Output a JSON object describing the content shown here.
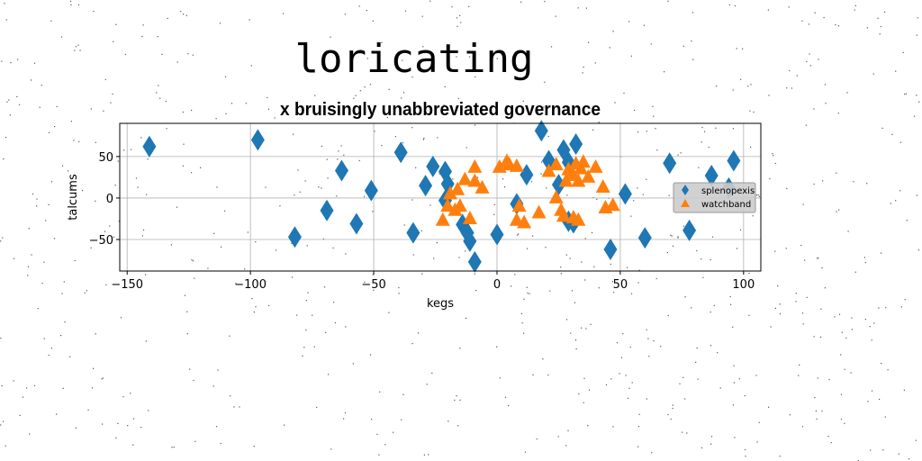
{
  "figure_title": "loricating",
  "chart_data": {
    "type": "scatter",
    "title": "x bruisingly unabbreviated governance",
    "xlabel": "kegs",
    "ylabel": "talcums",
    "xlim": [
      -153,
      107
    ],
    "ylim": [
      -88,
      90
    ],
    "xticks": [
      -150,
      -100,
      -50,
      0,
      50,
      100
    ],
    "yticks": [
      -50,
      0,
      50
    ],
    "grid": true,
    "legend_position": "right",
    "series": [
      {
        "name": "splenopexis",
        "marker": "thin_diamond",
        "color": "#1f77b4",
        "points": [
          [
            -141,
            62
          ],
          [
            -97,
            70
          ],
          [
            -82,
            -47
          ],
          [
            -69,
            -15
          ],
          [
            -63,
            33
          ],
          [
            -57,
            -31
          ],
          [
            -51,
            9
          ],
          [
            -39,
            55
          ],
          [
            -34,
            -42
          ],
          [
            -29,
            15
          ],
          [
            -26,
            38
          ],
          [
            -21,
            32
          ],
          [
            -21,
            -3
          ],
          [
            -20,
            17
          ],
          [
            -14,
            -32
          ],
          [
            -12,
            -42
          ],
          [
            -11,
            -52
          ],
          [
            -9,
            -77
          ],
          [
            0,
            -44
          ],
          [
            8,
            -7
          ],
          [
            12,
            28
          ],
          [
            18,
            81
          ],
          [
            21,
            45
          ],
          [
            25,
            16
          ],
          [
            27,
            58
          ],
          [
            29,
            43
          ],
          [
            29,
            -28
          ],
          [
            31,
            -30
          ],
          [
            32,
            65
          ],
          [
            46,
            -62
          ],
          [
            52,
            5
          ],
          [
            60,
            -48
          ],
          [
            70,
            42
          ],
          [
            78,
            -39
          ],
          [
            87,
            27
          ],
          [
            94,
            12
          ],
          [
            96,
            45
          ]
        ]
      },
      {
        "name": "watchband",
        "marker": "triangle_up",
        "color": "#ff7f0e",
        "points": [
          [
            -22,
            -27
          ],
          [
            -20,
            -10
          ],
          [
            -19,
            5
          ],
          [
            -17,
            -15
          ],
          [
            -16,
            10
          ],
          [
            -15,
            -10
          ],
          [
            -13,
            22
          ],
          [
            -11,
            -25
          ],
          [
            -9,
            20
          ],
          [
            -9,
            37
          ],
          [
            -6,
            12
          ],
          [
            1,
            37
          ],
          [
            4,
            44
          ],
          [
            5,
            40
          ],
          [
            8,
            38
          ],
          [
            8,
            -27
          ],
          [
            9,
            -10
          ],
          [
            11,
            -30
          ],
          [
            17,
            -18
          ],
          [
            21,
            32
          ],
          [
            24,
            40
          ],
          [
            24,
            0
          ],
          [
            26,
            -15
          ],
          [
            27,
            -22
          ],
          [
            28,
            20
          ],
          [
            29,
            34
          ],
          [
            30,
            30
          ],
          [
            31,
            27
          ],
          [
            31,
            -24
          ],
          [
            32,
            41
          ],
          [
            33,
            20
          ],
          [
            33,
            -27
          ],
          [
            34,
            35
          ],
          [
            35,
            43
          ],
          [
            37,
            25
          ],
          [
            40,
            37
          ],
          [
            43,
            13
          ],
          [
            44,
            -12
          ],
          [
            47,
            -9
          ]
        ]
      }
    ]
  }
}
